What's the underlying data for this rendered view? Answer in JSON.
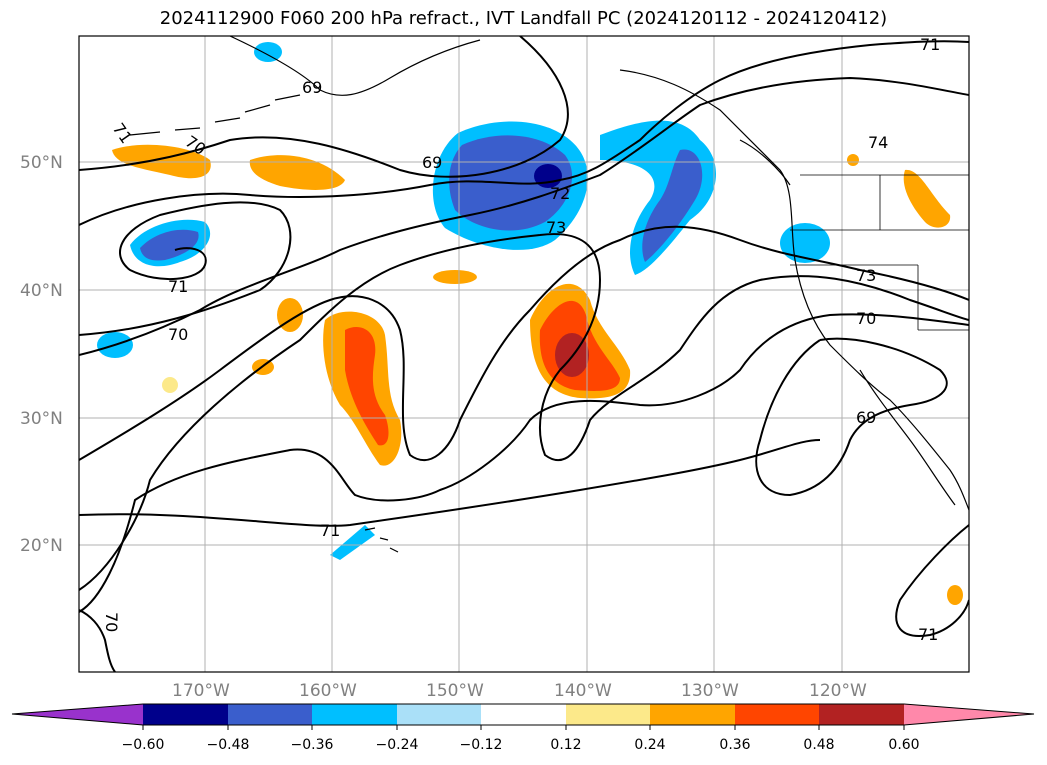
{
  "title": "2024112900 F060 200 hPa refract., IVT Landfall PC (2024120112 - 2024120412)",
  "colors": {
    "neg_060": "#9932cc",
    "neg_048": "#00008b",
    "neg_036": "#3a5ecc",
    "neg_024": "#00bfff",
    "neg_012": "#aae0f8",
    "zero": "#ffffff",
    "pos_012": "#fce98a",
    "pos_024": "#ffa500",
    "pos_036": "#ff4500",
    "pos_048": "#b22222",
    "pos_060": "#ff88aa",
    "contour": "#000000",
    "grid": "#b0b0b0",
    "coast": "#000000"
  },
  "map": {
    "lat_ticks": [
      "50°N",
      "40°N",
      "30°N",
      "20°N"
    ],
    "lon_ticks": [
      "170°W",
      "160°W",
      "150°W",
      "140°W",
      "130°W",
      "120°W"
    ]
  },
  "contour_labels": [
    "71",
    "69",
    "70",
    "71",
    "72",
    "73",
    "69",
    "70",
    "71",
    "74",
    "73",
    "70",
    "69",
    "71",
    "70",
    "71"
  ],
  "colorbar": {
    "ticks": [
      "−0.60",
      "−0.48",
      "−0.36",
      "−0.24",
      "−0.12",
      "0.12",
      "0.24",
      "0.36",
      "0.48",
      "0.60"
    ]
  }
}
